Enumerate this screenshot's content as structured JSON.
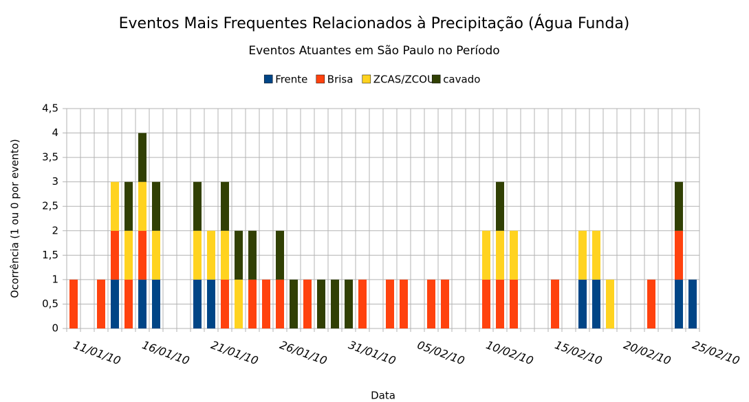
{
  "chart_data": {
    "type": "bar",
    "stacked": true,
    "title": "Eventos Mais Frequentes Relacionados à Precipitação (Água Funda)",
    "subtitle": "Eventos Atuantes em São Paulo no Período",
    "x_label": "Data",
    "y_label": "Ocorrência (1 ou 0 por evento)",
    "categories": [
      "11/01/10",
      null,
      null,
      null,
      null,
      "16/01/10",
      null,
      null,
      null,
      null,
      "21/01/10",
      null,
      null,
      null,
      null,
      "26/01/10",
      null,
      null,
      null,
      null,
      "31/01/10",
      null,
      null,
      null,
      null,
      "05/02/10",
      null,
      null,
      null,
      null,
      "10/02/10",
      null,
      null,
      null,
      null,
      "15/02/10",
      null,
      null,
      null,
      null,
      "20/02/10",
      null,
      null,
      null,
      null,
      "25/02/10"
    ],
    "series": [
      {
        "name": "Frente",
        "color": "#004586",
        "values": [
          0,
          0,
          0,
          1,
          0,
          1,
          1,
          0,
          0,
          1,
          1,
          0,
          0,
          0,
          0,
          0,
          0,
          0,
          0,
          0,
          0,
          0,
          0,
          0,
          0,
          0,
          0,
          0,
          0,
          0,
          0,
          0,
          0,
          0,
          0,
          0,
          0,
          1,
          1,
          0,
          0,
          0,
          0,
          0,
          1,
          1
        ]
      },
      {
        "name": "Brisa",
        "color": "#ff420e",
        "values": [
          1,
          0,
          1,
          1,
          1,
          1,
          0,
          0,
          0,
          0,
          0,
          1,
          0,
          1,
          1,
          1,
          0,
          1,
          0,
          0,
          0,
          1,
          0,
          1,
          1,
          0,
          1,
          1,
          0,
          0,
          1,
          1,
          1,
          0,
          0,
          1,
          0,
          0,
          0,
          0,
          0,
          0,
          1,
          0,
          1,
          0
        ]
      },
      {
        "name": "ZCAS/ZCOU",
        "color": "#ffd320",
        "values": [
          0,
          0,
          0,
          1,
          1,
          1,
          1,
          0,
          0,
          1,
          1,
          1,
          1,
          0,
          0,
          0,
          0,
          0,
          0,
          0,
          0,
          0,
          0,
          0,
          0,
          0,
          0,
          0,
          0,
          0,
          1,
          1,
          1,
          0,
          0,
          0,
          0,
          1,
          1,
          1,
          0,
          0,
          0,
          0,
          0,
          0
        ]
      },
      {
        "name": "cavado",
        "color": "#314004",
        "values": [
          0,
          0,
          0,
          0,
          1,
          1,
          1,
          0,
          0,
          1,
          0,
          1,
          1,
          1,
          0,
          1,
          1,
          0,
          1,
          1,
          1,
          0,
          0,
          0,
          0,
          0,
          0,
          0,
          0,
          0,
          0,
          1,
          0,
          0,
          0,
          0,
          0,
          0,
          0,
          0,
          0,
          0,
          0,
          0,
          1,
          0
        ]
      }
    ],
    "ylim": [
      0,
      4.5
    ],
    "yticks": [
      0,
      {
        "value": 0.5,
        "label": "0,5"
      },
      1,
      {
        "value": 1.5,
        "label": "1,5"
      },
      2,
      {
        "value": 2.5,
        "label": "2,5"
      },
      3,
      {
        "value": 3.5,
        "label": "3,5"
      },
      4,
      {
        "value": 4.5,
        "label": "4,5"
      }
    ],
    "grid": true,
    "legend": "top"
  }
}
